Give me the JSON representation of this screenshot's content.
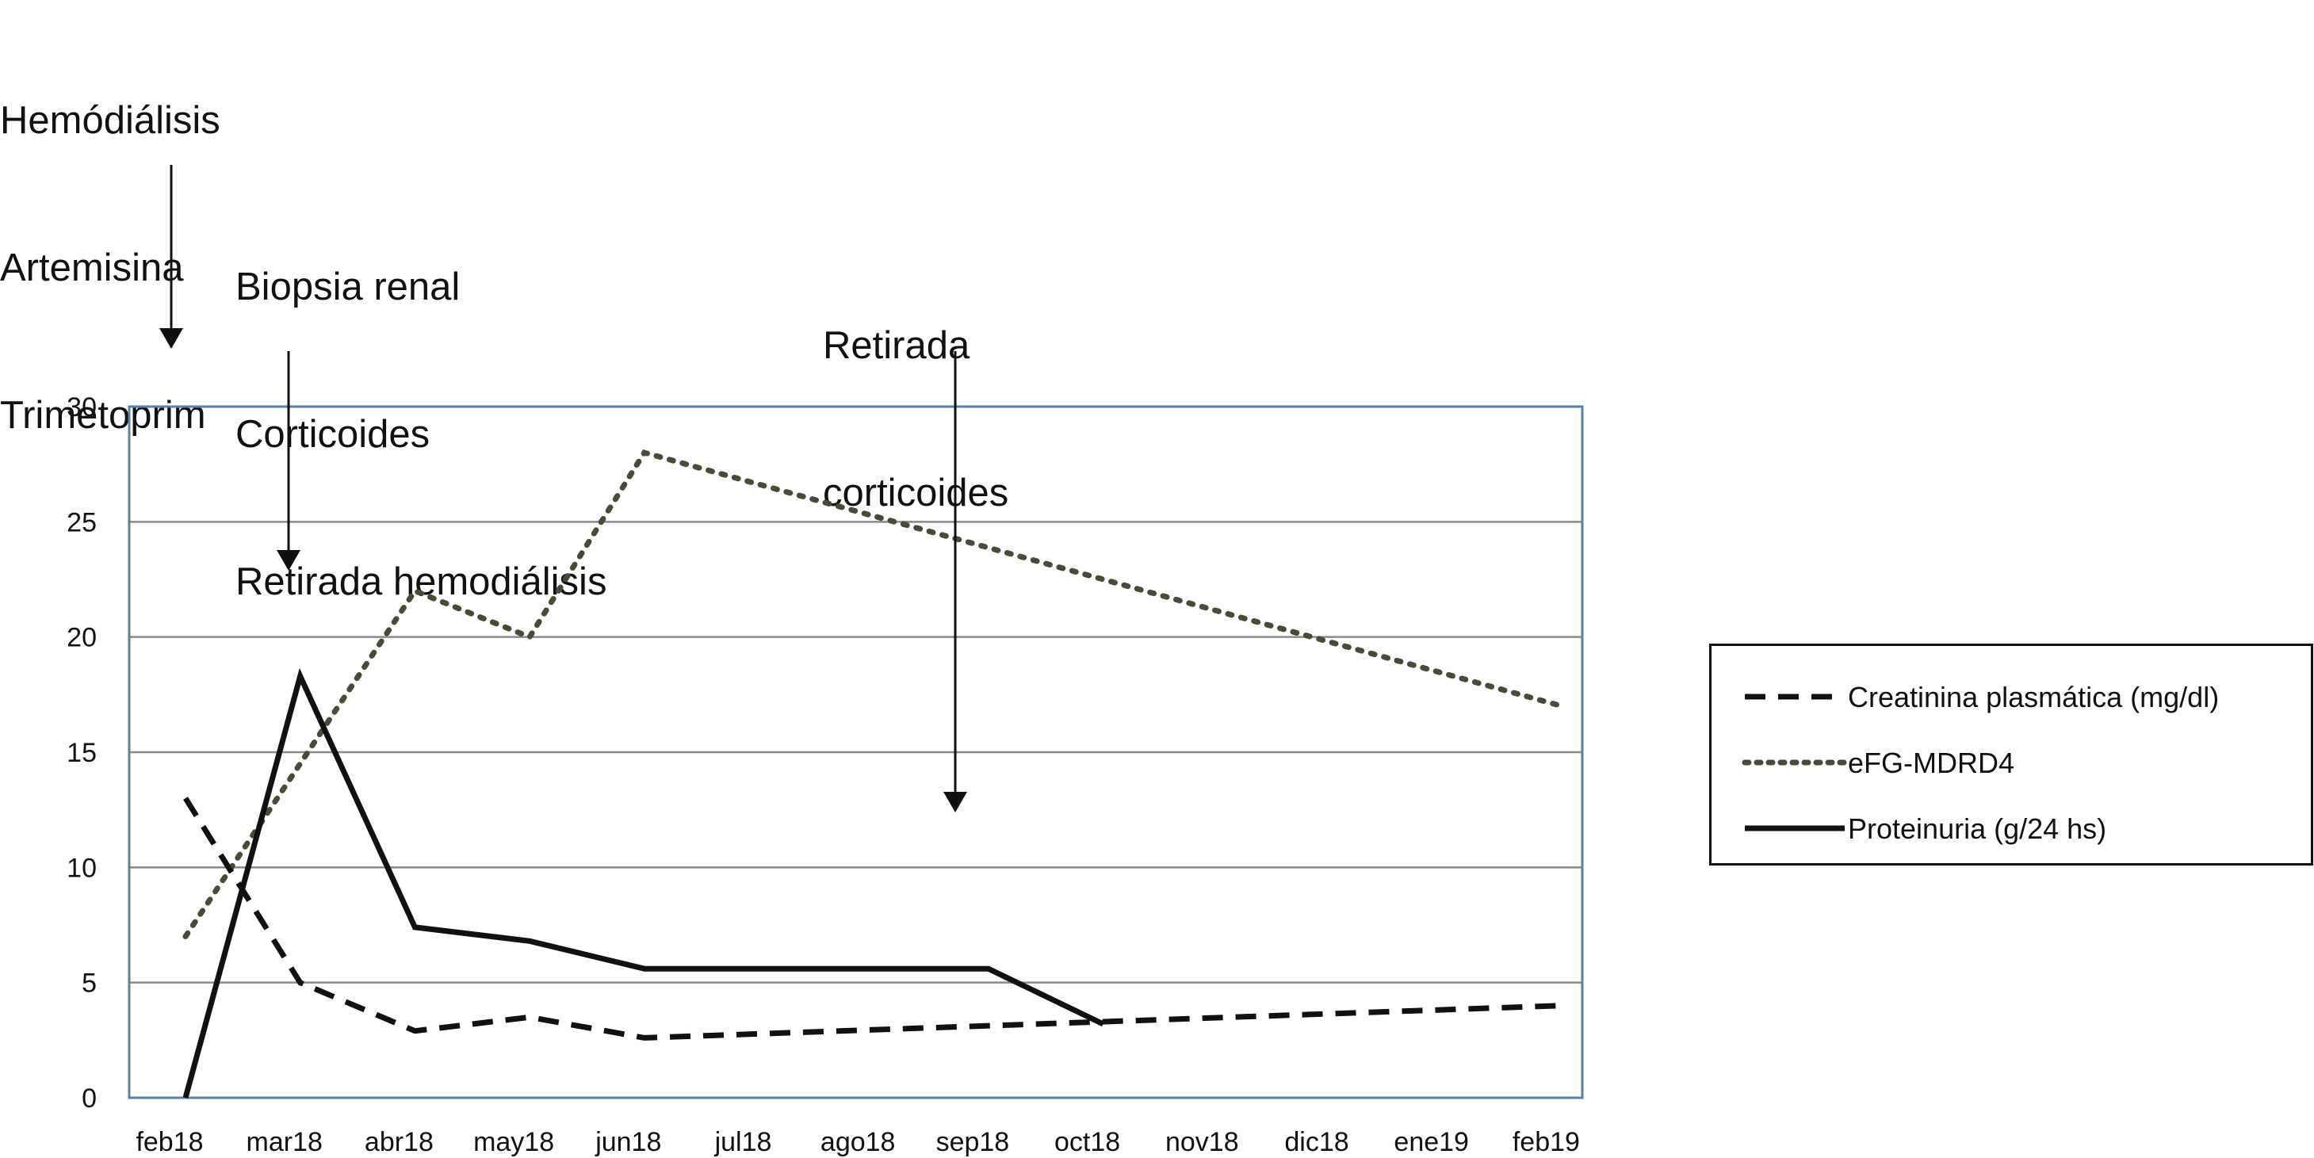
{
  "annotations": [
    {
      "lines": [
        "Hemódiálisis",
        "Artemisina",
        "Trimetoprim"
      ],
      "points_to": "feb18"
    },
    {
      "lines": [
        "Biopsia renal",
        "Corticoides",
        "Retirada hemodiálisis"
      ],
      "points_to": "mar18"
    },
    {
      "lines": [
        "Retirada",
        "corticoides"
      ],
      "points_to": "sep18"
    }
  ],
  "colors": {
    "plot_border": "#5b7fa6",
    "gridline": "#8a8a8a",
    "creatinina": "#111111",
    "efg": "#4a4a3a",
    "proteinuria": "#111111"
  },
  "chart_data": {
    "type": "line",
    "categories": [
      "feb18",
      "mar18",
      "abr18",
      "may18",
      "jun18",
      "jul18",
      "ago18",
      "sep18",
      "oct18",
      "nov18",
      "dic18",
      "ene19",
      "feb19"
    ],
    "ylim": [
      0,
      30
    ],
    "yticks": [
      0,
      5,
      10,
      15,
      20,
      25,
      30
    ],
    "grid": true,
    "legend_position": "right",
    "series": [
      {
        "name": "Creatinina plasmática (mg/dl)",
        "style": "dashed",
        "points": [
          [
            0,
            13
          ],
          [
            1,
            5
          ],
          [
            2,
            2.9
          ],
          [
            3,
            3.5
          ],
          [
            4,
            2.6
          ],
          [
            12,
            4
          ]
        ]
      },
      {
        "name": "eFG-MDRD4",
        "style": "dotted",
        "points": [
          [
            0,
            7
          ],
          [
            2,
            22
          ],
          [
            3,
            20
          ],
          [
            4,
            28
          ],
          [
            12,
            17
          ]
        ]
      },
      {
        "name": "Proteinuria (g/24 hs)",
        "style": "solid",
        "points": [
          [
            0,
            0
          ],
          [
            1,
            18.3
          ],
          [
            2,
            7.4
          ],
          [
            3,
            6.8
          ],
          [
            4,
            5.6
          ],
          [
            7,
            5.6
          ],
          [
            8,
            3.2
          ]
        ]
      }
    ]
  }
}
